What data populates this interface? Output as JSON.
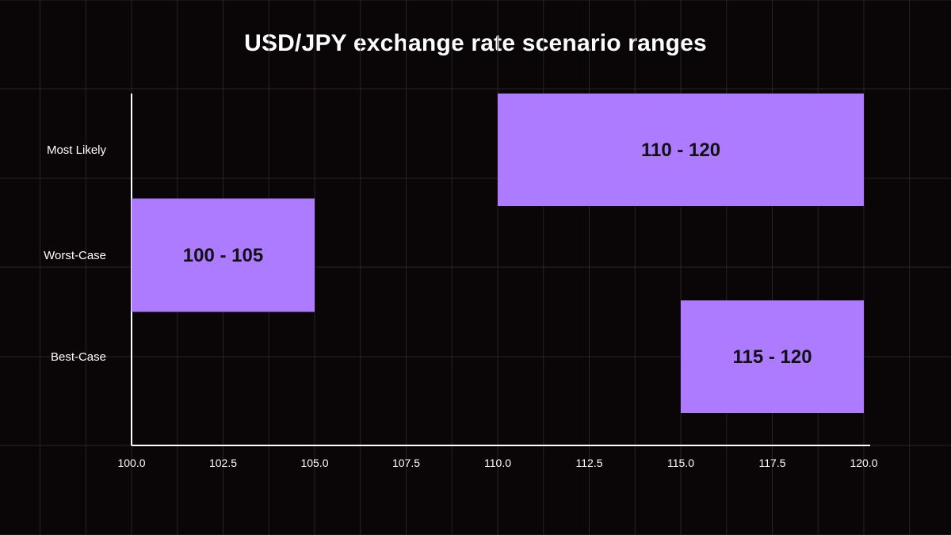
{
  "chart_data": {
    "type": "bar",
    "orientation": "horizontal-range",
    "title": "USD/JPY exchange rate scenario ranges",
    "xlabel": "",
    "ylabel": "",
    "xlim": [
      100.0,
      120.0
    ],
    "x_ticks": [
      "100.0",
      "102.5",
      "105.0",
      "107.5",
      "110.0",
      "112.5",
      "115.0",
      "117.5",
      "120.0"
    ],
    "x_tick_values": [
      100.0,
      102.5,
      105.0,
      107.5,
      110.0,
      112.5,
      115.0,
      117.5,
      120.0
    ],
    "categories": [
      "Most Likely",
      "Worst-Case",
      "Best-Case"
    ],
    "series": [
      {
        "name": "Scenario range",
        "ranges": [
          [
            110,
            120
          ],
          [
            100,
            105
          ],
          [
            115,
            120
          ]
        ],
        "labels": [
          "110 - 120",
          "100 - 105",
          "115 - 120"
        ]
      }
    ],
    "grid": true,
    "colors": {
      "background": "#0a0506",
      "bar": "#ad7bff",
      "grid": "#2a2326",
      "axis": "#ffffff",
      "text": "#ffffff",
      "bar_label": "#111111"
    }
  }
}
